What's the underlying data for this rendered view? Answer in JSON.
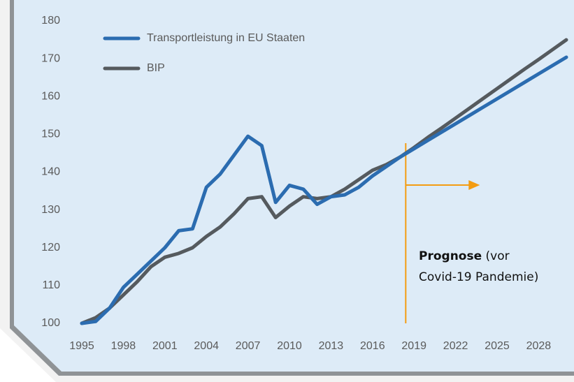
{
  "chart_data": {
    "type": "line",
    "x": [
      1995,
      1996,
      1997,
      1998,
      1999,
      2000,
      2001,
      2002,
      2003,
      2004,
      2005,
      2006,
      2007,
      2008,
      2009,
      2010,
      2011,
      2012,
      2013,
      2014,
      2015,
      2016,
      2017,
      2018,
      2019,
      2020,
      2021,
      2022,
      2023,
      2024,
      2025,
      2026,
      2027,
      2028,
      2029,
      2030
    ],
    "series": [
      {
        "name": "Transportleistung in EU Staaten",
        "color": "#2b6cb0",
        "values": [
          100,
          100.5,
          104,
          109.5,
          113,
          116.5,
          120,
          124.5,
          125,
          136,
          139.5,
          144.5,
          149.5,
          147,
          132,
          136.5,
          135.5,
          131.5,
          133.5,
          134,
          136,
          139,
          141.5,
          144,
          146.2,
          148.4,
          150.6,
          152.8,
          155,
          157.2,
          159.4,
          161.6,
          163.8,
          166,
          168.2,
          170.4
        ]
      },
      {
        "name": "BIP",
        "color": "#555a5e",
        "values": [
          100,
          101.5,
          104,
          107.5,
          111,
          115,
          117.5,
          118.5,
          120,
          123,
          125.5,
          129,
          133,
          133.5,
          128,
          131,
          133.5,
          133,
          133.5,
          135.5,
          138,
          140.5,
          142,
          144,
          146.5,
          149.2,
          151.7,
          154.3,
          156.9,
          159.5,
          162.1,
          164.7,
          167.3,
          169.8,
          172.4,
          175
        ]
      }
    ],
    "xlim": [
      1995,
      2030
    ],
    "xticks": [
      1995,
      1998,
      2001,
      2004,
      2007,
      2010,
      2013,
      2016,
      2019,
      2022,
      2025,
      2028
    ],
    "ylim": [
      100,
      180
    ],
    "yticks": [
      100,
      110,
      120,
      130,
      140,
      150,
      160,
      170,
      180
    ],
    "legend": "top-left",
    "annotation": {
      "x": 2018.4,
      "title": "Prognose",
      "lines": [
        "(vor",
        "Covid-19 Pandemie)"
      ],
      "color": "#f39c12"
    }
  }
}
